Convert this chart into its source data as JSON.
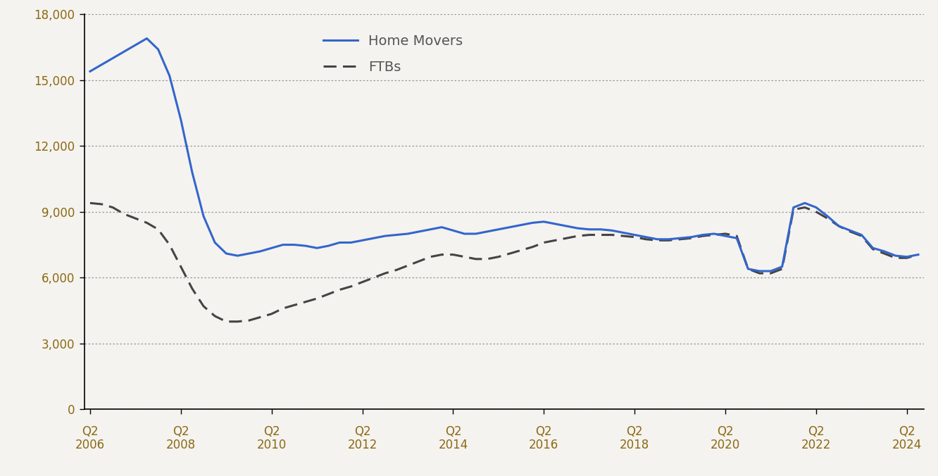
{
  "home_movers": [
    15400,
    15700,
    16000,
    16300,
    16600,
    16900,
    16400,
    15200,
    13200,
    10800,
    8800,
    7600,
    7100,
    7000,
    7100,
    7200,
    7350,
    7500,
    7500,
    7450,
    7350,
    7450,
    7600,
    7600,
    7700,
    7800,
    7900,
    7950,
    8000,
    8100,
    8200,
    8300,
    8150,
    8000,
    8000,
    8100,
    8200,
    8300,
    8400,
    8500,
    8550,
    8450,
    8350,
    8250,
    8200,
    8200,
    8150,
    8050,
    7950,
    7850,
    7750,
    7750,
    7800,
    7850,
    7950,
    8000,
    7900,
    7800,
    6400,
    6300,
    6300,
    6500,
    9200,
    9400,
    9200,
    8800,
    8350,
    8150,
    7950,
    7350,
    7200,
    7000,
    6950,
    7050
  ],
  "ftbs": [
    9400,
    9350,
    9200,
    8900,
    8700,
    8500,
    8200,
    7500,
    6500,
    5500,
    4700,
    4250,
    4000,
    4000,
    4050,
    4200,
    4350,
    4600,
    4750,
    4900,
    5050,
    5250,
    5450,
    5600,
    5800,
    6000,
    6200,
    6350,
    6550,
    6750,
    6950,
    7050,
    7050,
    6950,
    6850,
    6850,
    6950,
    7100,
    7250,
    7400,
    7600,
    7700,
    7800,
    7900,
    7950,
    7950,
    7950,
    7900,
    7850,
    7750,
    7700,
    7700,
    7750,
    7800,
    7900,
    7950,
    8000,
    7900,
    6400,
    6200,
    6200,
    6400,
    9100,
    9200,
    9000,
    8700,
    8350,
    8100,
    7900,
    7300,
    7100,
    6900,
    6900,
    7050
  ],
  "yticks": [
    0,
    3000,
    6000,
    9000,
    12000,
    15000,
    18000
  ],
  "ylim": [
    0,
    18000
  ],
  "background_color": "#f5f3ef",
  "plot_bg_color": "#f5f3ef",
  "home_movers_color": "#3366cc",
  "ftbs_color": "#444444",
  "grid_color": "#999999",
  "tick_label_color": "#8B6914",
  "home_movers_label": "Home Movers",
  "ftbs_label": "FTBs",
  "x_tick_years": [
    2006,
    2008,
    2010,
    2012,
    2014,
    2016,
    2018,
    2020,
    2022,
    2024
  ],
  "legend_fontsize": 14,
  "tick_fontsize": 12,
  "line_width": 2.2
}
